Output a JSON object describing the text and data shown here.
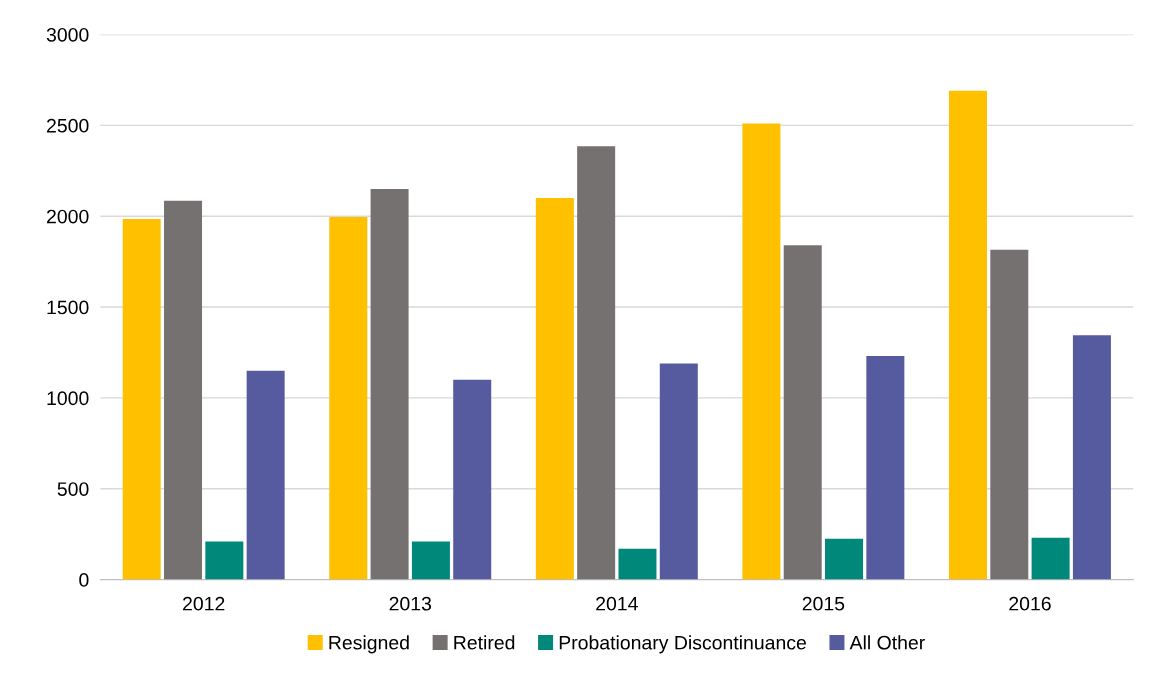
{
  "chart_data": {
    "type": "bar",
    "categories": [
      "2012",
      "2013",
      "2014",
      "2015",
      "2016"
    ],
    "series": [
      {
        "name": "Resigned",
        "color": "#ffc000",
        "values": [
          1985,
          1995,
          2100,
          2510,
          2690
        ]
      },
      {
        "name": "Retired",
        "color": "#767171",
        "values": [
          2085,
          2150,
          2385,
          1840,
          1815
        ]
      },
      {
        "name": "Probationary Discontinuance",
        "color": "#00897b",
        "values": [
          210,
          210,
          170,
          225,
          230
        ]
      },
      {
        "name": "All Other",
        "color": "#565b9f",
        "values": [
          1150,
          1100,
          1190,
          1230,
          1345
        ]
      }
    ],
    "ylim": [
      0,
      3000
    ],
    "yticks": [
      0,
      500,
      1000,
      1500,
      2000,
      2500,
      3000
    ],
    "grid": "y",
    "legend": "bottom"
  }
}
